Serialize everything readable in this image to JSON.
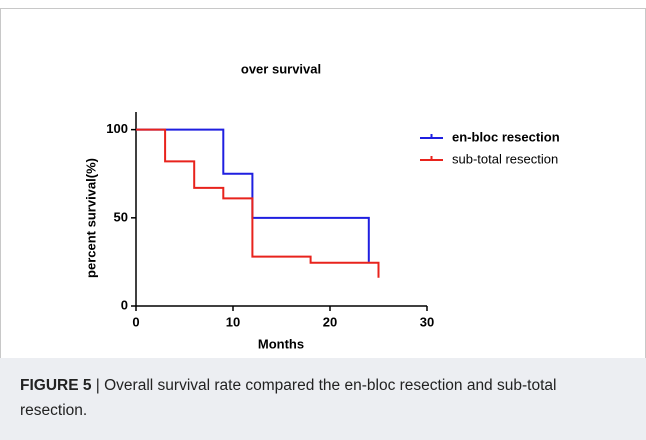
{
  "chart_data": {
    "type": "line",
    "step": "post",
    "title": "over survival",
    "xlabel": "Months",
    "ylabel": "percent survival(%)",
    "xlim": [
      0,
      30
    ],
    "xticks": [
      0,
      10,
      20,
      30
    ],
    "ylim": [
      0,
      110
    ],
    "yticks": [
      0,
      50,
      100
    ],
    "grid": false,
    "legend": "upper right",
    "series": [
      {
        "name": "en-bloc resection",
        "color": "#1f1fe0",
        "x": [
          0,
          9,
          12,
          24
        ],
        "values": [
          100,
          75,
          50,
          25
        ]
      },
      {
        "name": "sub-total resection",
        "color": "#e8231c",
        "x": [
          0,
          3,
          6,
          9,
          12,
          18,
          25
        ],
        "values": [
          100,
          82,
          67,
          61,
          28,
          24.5,
          16
        ]
      }
    ]
  },
  "figure_caption": {
    "label": "FIGURE 5",
    "text": "| Overall survival rate compared the en-bloc resection and sub-total resection."
  }
}
